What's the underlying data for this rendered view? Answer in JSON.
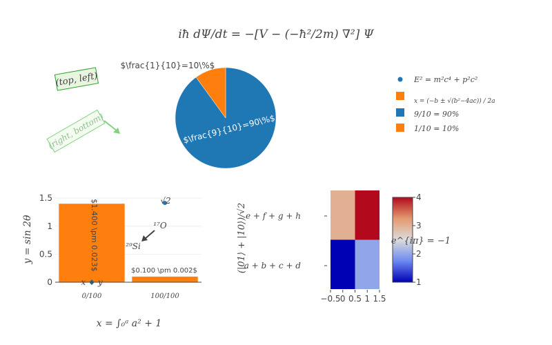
{
  "title": "iħ dΨ/dt = −[V − (−ħ²/2m) ∇²] Ψ",
  "annotations": {
    "top_left": "(top, left)",
    "right_bottom": "(right, bottom)"
  },
  "legend": {
    "placement": "top-right",
    "items": [
      {
        "label": "E² = m²c⁴ + p²c²",
        "symbol": "dot",
        "color": "#1f77b4"
      },
      {
        "label": "x = (−b ± √(b²−4ac)) / 2a",
        "symbol": "square",
        "color": "#ff7f0e"
      },
      {
        "label": "9/10 = 90%",
        "symbol": "square",
        "color": "#1f77b4"
      },
      {
        "label": "1/10 = 10%",
        "symbol": "square",
        "color": "#ff7f0e"
      }
    ]
  },
  "chart_data": [
    {
      "type": "pie",
      "labels": [
        "9/10 = 90%",
        "1/10 = 10%"
      ],
      "values": [
        90,
        10
      ],
      "colors": [
        "#1f77b4",
        "#ff7f0e"
      ],
      "slice_texts": [
        "$\\frac{9}{10}=90\\%$",
        "$\\frac{1}{10}=10\\%$"
      ]
    },
    {
      "type": "bar",
      "categories": [
        "0/100",
        "100/100"
      ],
      "values": [
        1.4,
        0.1
      ],
      "bar_texts": [
        "$1.400 \\pm 0.023$",
        "$0.100 \\pm 0.002$"
      ],
      "color": "#ff7f0e",
      "xlabel": "x = ∫₀ᵃ a² + 1",
      "ylabel": "y = sin 2θ",
      "ylim": [
        0,
        1.6
      ],
      "yticks": [
        "0",
        "0.5",
        "1",
        "1.5"
      ],
      "grid": true,
      "scatter": {
        "points": [
          {
            "x": 0,
            "y": 0,
            "label": "x + y"
          },
          {
            "x": 1,
            "y": 1.414,
            "label": "√2"
          }
        ],
        "color": "#1f77b4"
      },
      "arrow_annotation": {
        "text": "²⁹Si",
        "head_label": "¹⁷O"
      }
    },
    {
      "type": "heatmap",
      "x": [
        0,
        1
      ],
      "xticks": [
        "−0.5",
        "0",
        "0.5",
        "1",
        "1.5"
      ],
      "y_labels": [
        "a + b + c + d",
        "e + f + g + h"
      ],
      "ylabel": "(|01⟩ + |10⟩)/√2",
      "z": [
        [
          1,
          2
        ],
        [
          3,
          4
        ]
      ],
      "colorscale": [
        "#0000b4",
        "#6c8af0",
        "#dcdcdc",
        "#e39a6f",
        "#b20a1c"
      ],
      "colorbar_ticks": [
        "1",
        "2",
        "3",
        "4"
      ],
      "colorbar_title": "e^{iπ} = −1"
    }
  ]
}
